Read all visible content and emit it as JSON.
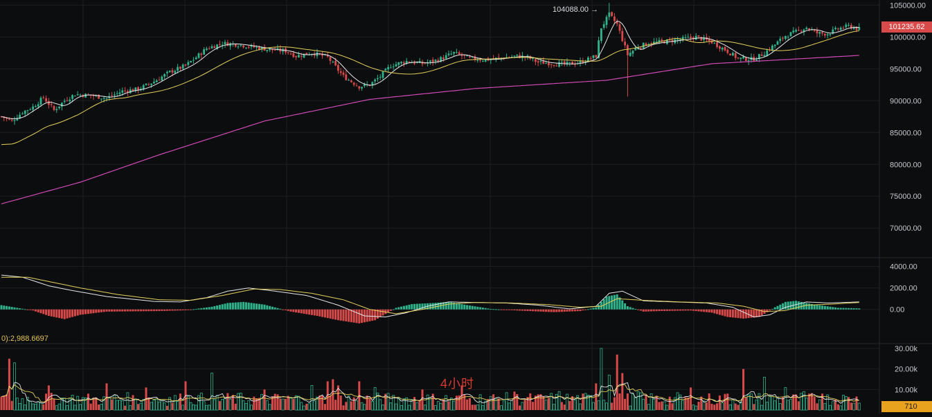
{
  "price_tag": "101235.62",
  "volume_tag": "710",
  "macd_readout": "0):2,988.6697",
  "high_label": "104088.00 →",
  "watermark": "4小时",
  "colors": {
    "background": "#0c0d0f",
    "up": "#2fb38c",
    "down": "#d84a4a",
    "ma_fast": "#e8e8ea",
    "ma_mid": "#e6d25a",
    "ma_slow": "#d04ab5",
    "grid": "#1c1e22",
    "price_tag": "#d84a4a",
    "volume_tag": "#e8a21e"
  },
  "chart_data": [
    {
      "type": "candlestick",
      "ylim": [
        66000,
        105800
      ],
      "yticks": [
        "105000.00",
        "100000.00",
        "95000.00",
        "90000.00",
        "85000.00",
        "80000.00",
        "75000.00",
        "70000.00"
      ],
      "last_price": 101235.62,
      "high_marker": 104088.0,
      "close_anchors": [
        [
          0,
          87500
        ],
        [
          4,
          86800
        ],
        [
          8,
          88200
        ],
        [
          12,
          89000
        ],
        [
          16,
          90500
        ],
        [
          20,
          88500
        ],
        [
          24,
          90000
        ],
        [
          28,
          91000
        ],
        [
          34,
          90800
        ],
        [
          40,
          90400
        ],
        [
          46,
          91500
        ],
        [
          52,
          91800
        ],
        [
          58,
          93000
        ],
        [
          64,
          94500
        ],
        [
          70,
          95500
        ],
        [
          74,
          96800
        ],
        [
          78,
          98200
        ],
        [
          84,
          99000
        ],
        [
          90,
          98800
        ],
        [
          96,
          98400
        ],
        [
          102,
          98000
        ],
        [
          108,
          97800
        ],
        [
          112,
          97000
        ],
        [
          118,
          97500
        ],
        [
          124,
          96800
        ],
        [
          130,
          93800
        ],
        [
          136,
          92200
        ],
        [
          140,
          92500
        ],
        [
          144,
          93800
        ],
        [
          148,
          95500
        ],
        [
          154,
          96200
        ],
        [
          160,
          95800
        ],
        [
          166,
          96400
        ],
        [
          172,
          97500
        ],
        [
          178,
          96600
        ],
        [
          184,
          96400
        ],
        [
          190,
          96700
        ],
        [
          196,
          97000
        ],
        [
          200,
          96800
        ],
        [
          204,
          96000
        ],
        [
          208,
          95900
        ],
        [
          214,
          95700
        ],
        [
          220,
          96000
        ],
        [
          226,
          97000
        ],
        [
          228,
          101500
        ],
        [
          231,
          103500
        ],
        [
          234,
          102000
        ],
        [
          238,
          97200
        ],
        [
          242,
          98500
        ],
        [
          246,
          99000
        ],
        [
          252,
          99300
        ],
        [
          258,
          99600
        ],
        [
          264,
          100000
        ],
        [
          270,
          99200
        ],
        [
          275,
          98000
        ],
        [
          280,
          96600
        ],
        [
          286,
          96500
        ],
        [
          290,
          97500
        ],
        [
          294,
          98800
        ],
        [
          298,
          100200
        ],
        [
          302,
          100800
        ],
        [
          306,
          101500
        ],
        [
          310,
          100600
        ],
        [
          314,
          100500
        ],
        [
          318,
          101300
        ],
        [
          322,
          101700
        ],
        [
          326,
          101235.62
        ]
      ],
      "ma_slow": [
        [
          0,
          73800
        ],
        [
          30,
          77200
        ],
        [
          60,
          81500
        ],
        [
          100,
          86800
        ],
        [
          140,
          90200
        ],
        [
          180,
          91900
        ],
        [
          230,
          93200
        ],
        [
          270,
          95800
        ],
        [
          326,
          97100
        ]
      ]
    },
    {
      "type": "histogram+lines",
      "name": "MACD",
      "ylim": [
        -1500,
        4300
      ],
      "yticks": [
        "4000.00",
        "2000.00",
        "0.00"
      ],
      "readout": 2988.6697,
      "hist_anchors": [
        [
          0,
          400
        ],
        [
          6,
          150
        ],
        [
          12,
          -100
        ],
        [
          18,
          -600
        ],
        [
          24,
          -900
        ],
        [
          30,
          -500
        ],
        [
          40,
          -200
        ],
        [
          60,
          -150
        ],
        [
          70,
          -80
        ],
        [
          80,
          250
        ],
        [
          86,
          600
        ],
        [
          92,
          700
        ],
        [
          100,
          450
        ],
        [
          110,
          -200
        ],
        [
          120,
          -600
        ],
        [
          128,
          -1000
        ],
        [
          136,
          -1300
        ],
        [
          142,
          -1000
        ],
        [
          150,
          150
        ],
        [
          156,
          500
        ],
        [
          164,
          600
        ],
        [
          170,
          700
        ],
        [
          176,
          450
        ],
        [
          186,
          50
        ],
        [
          196,
          -100
        ],
        [
          210,
          -250
        ],
        [
          220,
          -150
        ],
        [
          226,
          200
        ],
        [
          230,
          1200
        ],
        [
          234,
          1400
        ],
        [
          238,
          300
        ],
        [
          244,
          -200
        ],
        [
          250,
          -150
        ],
        [
          262,
          -100
        ],
        [
          270,
          -300
        ],
        [
          276,
          -700
        ],
        [
          282,
          -850
        ],
        [
          288,
          -700
        ],
        [
          294,
          200
        ],
        [
          298,
          700
        ],
        [
          302,
          800
        ],
        [
          308,
          500
        ],
        [
          318,
          150
        ],
        [
          326,
          100
        ]
      ],
      "line_anchors": [
        [
          0,
          3200
        ],
        [
          8,
          3000
        ],
        [
          18,
          2200
        ],
        [
          26,
          1800
        ],
        [
          40,
          1200
        ],
        [
          58,
          750
        ],
        [
          68,
          700
        ],
        [
          78,
          1100
        ],
        [
          86,
          1700
        ],
        [
          94,
          2000
        ],
        [
          104,
          1700
        ],
        [
          116,
          1300
        ],
        [
          128,
          400
        ],
        [
          138,
          -600
        ],
        [
          146,
          -700
        ],
        [
          154,
          -300
        ],
        [
          162,
          300
        ],
        [
          170,
          700
        ],
        [
          180,
          650
        ],
        [
          192,
          600
        ],
        [
          204,
          400
        ],
        [
          216,
          50
        ],
        [
          226,
          300
        ],
        [
          231,
          1500
        ],
        [
          236,
          1700
        ],
        [
          244,
          800
        ],
        [
          256,
          700
        ],
        [
          268,
          600
        ],
        [
          278,
          200
        ],
        [
          286,
          -700
        ],
        [
          292,
          -500
        ],
        [
          298,
          200
        ],
        [
          306,
          700
        ],
        [
          314,
          600
        ],
        [
          326,
          700
        ]
      ],
      "signal_anchors": [
        [
          0,
          3000
        ],
        [
          10,
          3000
        ],
        [
          20,
          2500
        ],
        [
          30,
          2000
        ],
        [
          44,
          1400
        ],
        [
          60,
          900
        ],
        [
          72,
          850
        ],
        [
          84,
          1300
        ],
        [
          96,
          1900
        ],
        [
          106,
          1850
        ],
        [
          118,
          1500
        ],
        [
          130,
          900
        ],
        [
          140,
          0
        ],
        [
          150,
          -400
        ],
        [
          160,
          0
        ],
        [
          170,
          500
        ],
        [
          180,
          650
        ],
        [
          194,
          600
        ],
        [
          208,
          450
        ],
        [
          220,
          200
        ],
        [
          228,
          300
        ],
        [
          234,
          1000
        ],
        [
          244,
          850
        ],
        [
          258,
          700
        ],
        [
          272,
          600
        ],
        [
          282,
          300
        ],
        [
          290,
          -200
        ],
        [
          298,
          -100
        ],
        [
          306,
          400
        ],
        [
          316,
          500
        ],
        [
          326,
          650
        ]
      ]
    },
    {
      "type": "bar",
      "name": "Volume",
      "ylim": [
        0,
        31000
      ],
      "yticks": [
        "30.00k",
        "20.00k",
        "10.00k"
      ],
      "last_value": 710,
      "spikes": [
        [
          3,
          25000
        ],
        [
          5,
          23000
        ],
        [
          18,
          12000
        ],
        [
          40,
          13000
        ],
        [
          55,
          11000
        ],
        [
          70,
          14000
        ],
        [
          80,
          18000
        ],
        [
          100,
          10000
        ],
        [
          118,
          12000
        ],
        [
          124,
          14000
        ],
        [
          126,
          15000
        ],
        [
          128,
          12000
        ],
        [
          136,
          14000
        ],
        [
          142,
          11000
        ],
        [
          160,
          10000
        ],
        [
          175,
          12000
        ],
        [
          195,
          9000
        ],
        [
          212,
          9000
        ],
        [
          226,
          13000
        ],
        [
          228,
          30000
        ],
        [
          231,
          17000
        ],
        [
          234,
          27000
        ],
        [
          236,
          18000
        ],
        [
          242,
          9000
        ],
        [
          262,
          11000
        ],
        [
          276,
          8000
        ],
        [
          282,
          20000
        ],
        [
          290,
          16000
        ],
        [
          298,
          11000
        ],
        [
          305,
          9000
        ],
        [
          312,
          8000
        ]
      ]
    }
  ]
}
